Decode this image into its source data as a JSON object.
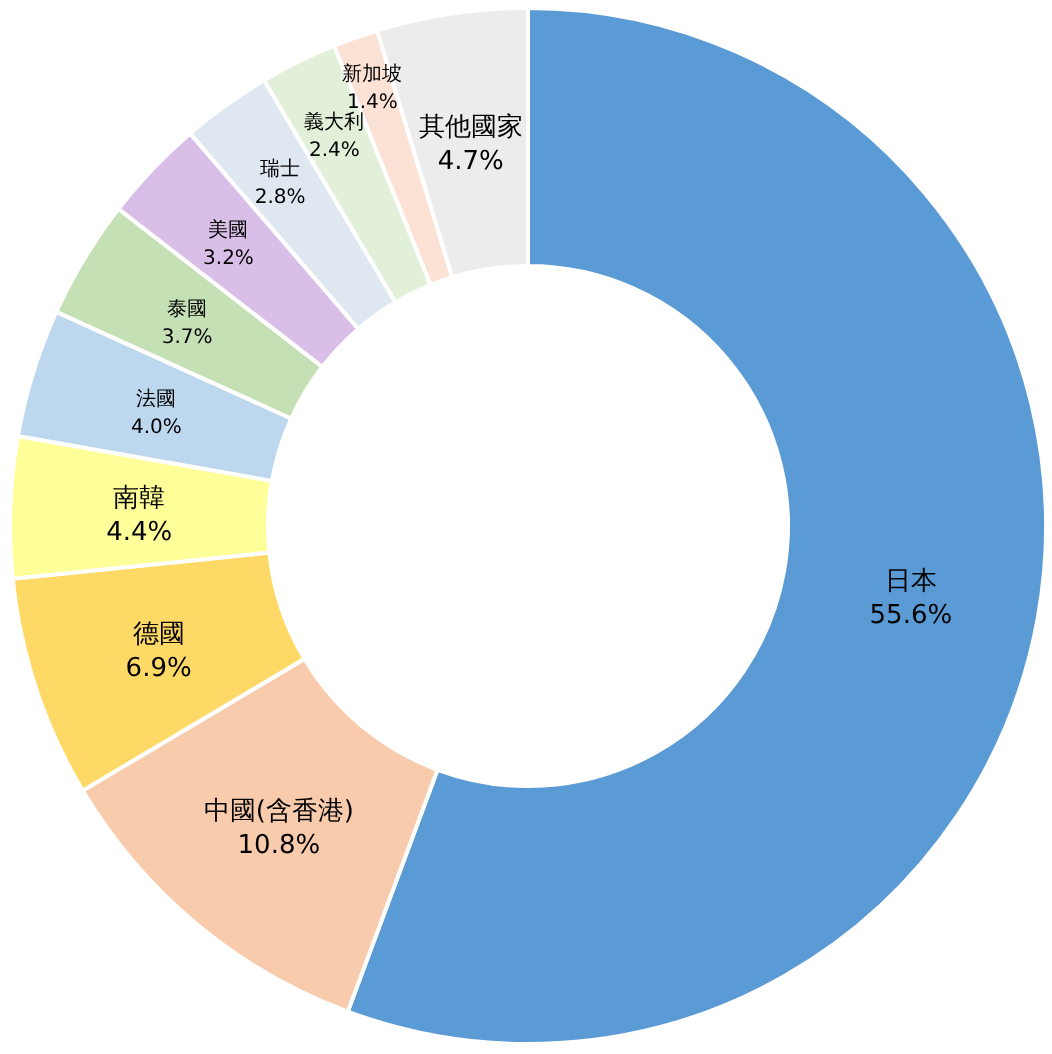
{
  "chart_data": {
    "type": "donut",
    "categories": [
      "日本",
      "中國(含香港)",
      "德國",
      "南韓",
      "法國",
      "泰國",
      "美國",
      "瑞士",
      "義大利",
      "新加坡",
      "其他國家"
    ],
    "values": [
      55.6,
      10.8,
      6.9,
      4.4,
      4.0,
      3.7,
      3.2,
      2.8,
      2.4,
      1.4,
      4.7
    ],
    "colors": [
      "#5b9bd5",
      "#f8cbad",
      "#ffd966",
      "#ffff99",
      "#bdd7ee",
      "#c5e0b4",
      "#d9bfe8",
      "#dfe7f1",
      "#e2f0d9",
      "#fbe2d5",
      "#ececec"
    ],
    "value_labels": [
      "55.6%",
      "10.8%",
      "6.9%",
      "4.4%",
      "4.0%",
      "3.7%",
      "3.2%",
      "2.8%",
      "2.4%",
      "1.4%",
      "4.7%"
    ]
  }
}
